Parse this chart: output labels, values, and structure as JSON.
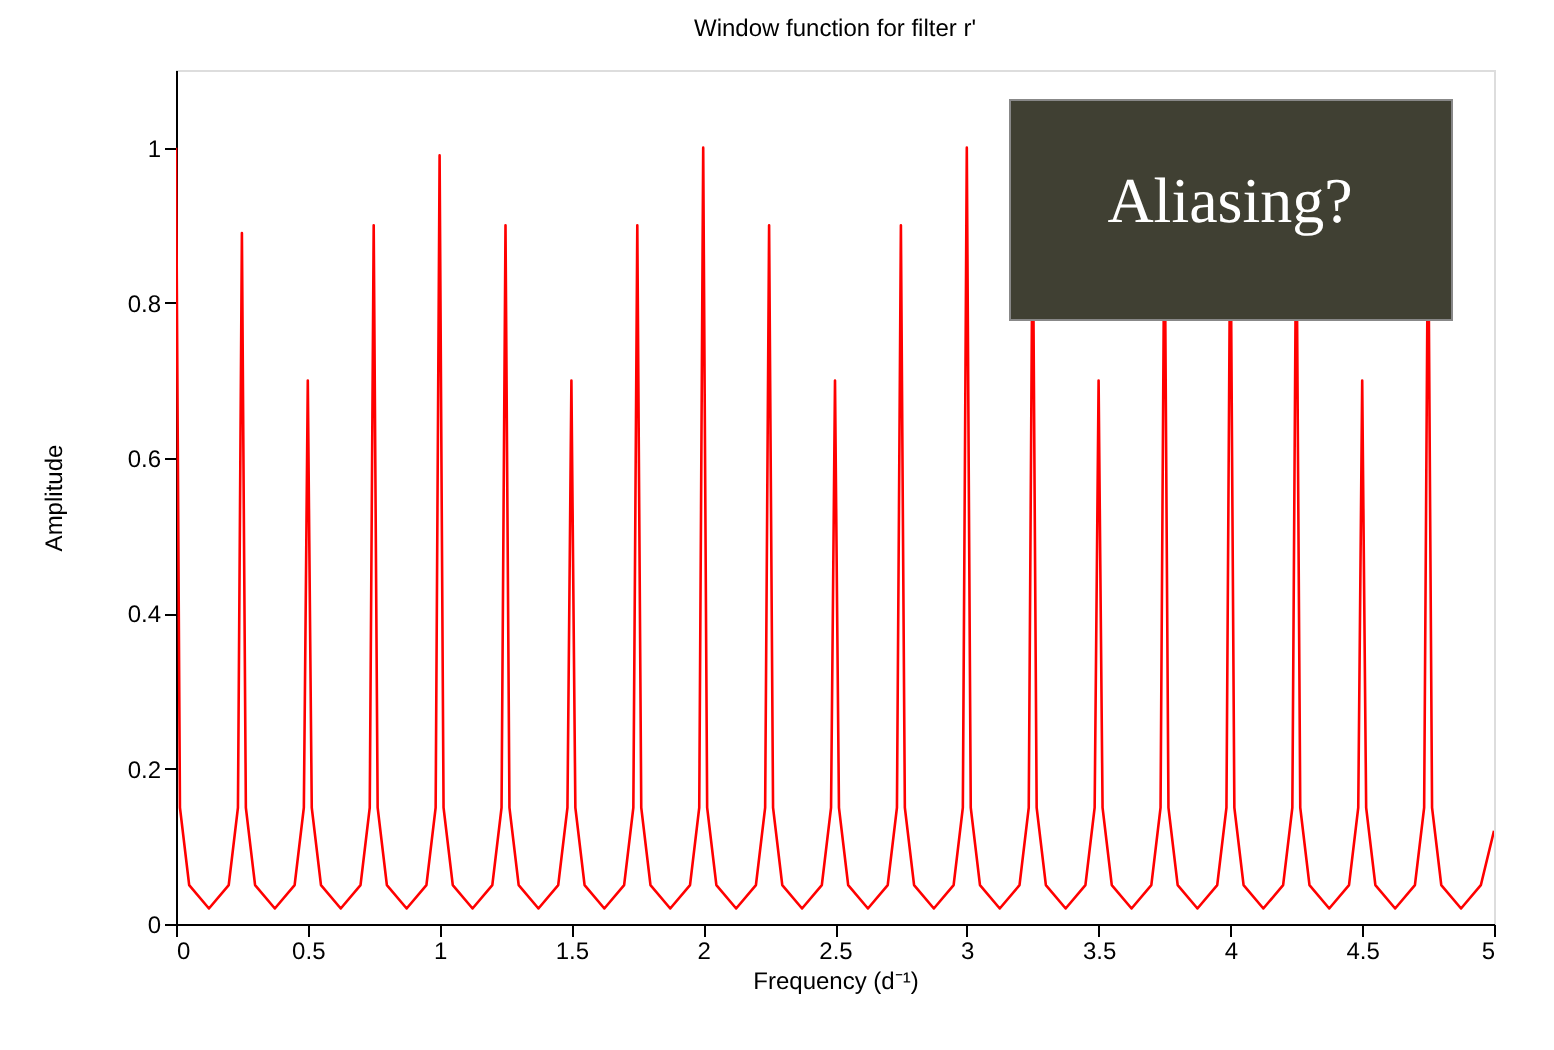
{
  "chart_data": {
    "type": "line",
    "title": "Window function for filter r'",
    "xlabel": "Frequency (d⁻¹)",
    "ylabel": "Amplitude",
    "annotations": [
      "Aliasing?"
    ],
    "x": [
      0,
      0.015,
      0.05,
      0.125,
      0.2,
      0.235,
      0.25,
      0.265,
      0.3,
      0.375,
      0.45,
      0.485,
      0.5,
      0.515,
      0.55,
      0.625,
      0.7,
      0.735,
      0.75,
      0.765,
      0.8,
      0.875,
      0.95,
      0.985,
      1,
      1.015,
      1.05,
      1.125,
      1.2,
      1.235,
      1.25,
      1.265,
      1.3,
      1.375,
      1.45,
      1.485,
      1.5,
      1.515,
      1.55,
      1.625,
      1.7,
      1.735,
      1.75,
      1.765,
      1.8,
      1.875,
      1.95,
      1.985,
      2,
      2.015,
      2.05,
      2.125,
      2.2,
      2.235,
      2.25,
      2.265,
      2.3,
      2.375,
      2.45,
      2.485,
      2.5,
      2.515,
      2.55,
      2.625,
      2.7,
      2.735,
      2.75,
      2.765,
      2.8,
      2.875,
      2.95,
      2.985,
      3,
      3.015,
      3.05,
      3.125,
      3.2,
      3.235,
      3.247,
      3.25,
      3.253,
      3.265,
      3.3,
      3.375,
      3.45,
      3.485,
      3.5,
      3.515,
      3.55,
      3.625,
      3.7,
      3.735,
      3.747,
      3.75,
      3.753,
      3.765,
      3.8,
      3.875,
      3.95,
      3.985,
      3.997,
      4,
      4.003,
      4.015,
      4.05,
      4.125,
      4.2,
      4.235,
      4.247,
      4.25,
      4.253,
      4.265,
      4.3,
      4.375,
      4.45,
      4.485,
      4.5,
      4.515,
      4.55,
      4.625,
      4.7,
      4.735,
      4.747,
      4.75,
      4.753,
      4.765,
      4.8,
      4.875,
      4.95,
      5
    ],
    "series": [
      {
        "color": "#ff0000",
        "values": [
          1.0,
          0.15,
          0.05,
          0.02,
          0.05,
          0.15,
          0.89,
          0.15,
          0.05,
          0.02,
          0.05,
          0.15,
          0.7,
          0.15,
          0.05,
          0.02,
          0.05,
          0.15,
          0.9,
          0.15,
          0.05,
          0.02,
          0.05,
          0.15,
          0.99,
          0.15,
          0.05,
          0.02,
          0.05,
          0.15,
          0.9,
          0.15,
          0.05,
          0.02,
          0.05,
          0.15,
          0.7,
          0.15,
          0.05,
          0.02,
          0.05,
          0.15,
          0.9,
          0.15,
          0.05,
          0.02,
          0.05,
          0.15,
          1.0,
          0.15,
          0.05,
          0.02,
          0.05,
          0.15,
          0.9,
          0.15,
          0.05,
          0.02,
          0.05,
          0.15,
          0.7,
          0.15,
          0.05,
          0.02,
          0.05,
          0.15,
          0.9,
          0.15,
          0.05,
          0.02,
          0.05,
          0.15,
          1.0,
          0.15,
          0.05,
          0.02,
          0.05,
          0.15,
          0.78,
          null,
          0.78,
          0.15,
          0.05,
          0.02,
          0.05,
          0.15,
          0.7,
          0.15,
          0.05,
          0.02,
          0.05,
          0.15,
          0.78,
          null,
          0.78,
          0.15,
          0.05,
          0.02,
          0.05,
          0.15,
          0.78,
          null,
          0.78,
          0.15,
          0.05,
          0.02,
          0.05,
          0.15,
          0.78,
          null,
          0.78,
          0.15,
          0.05,
          0.02,
          0.05,
          0.15,
          0.7,
          0.15,
          0.05,
          0.02,
          0.05,
          0.15,
          0.78,
          null,
          0.78,
          0.15,
          0.05,
          0.02,
          0.05,
          0.12
        ]
      }
    ],
    "xlim": [
      0,
      5
    ],
    "xticks": [
      0,
      0.5,
      1,
      1.5,
      2,
      2.5,
      3,
      3.5,
      4,
      4.5,
      5
    ],
    "ylim": [
      0,
      1.1
    ],
    "yticks": [
      0,
      0.2,
      0.4,
      0.6,
      0.8,
      1
    ],
    "grid": false,
    "legend": false,
    "marker": "none",
    "line_style": "solid"
  }
}
